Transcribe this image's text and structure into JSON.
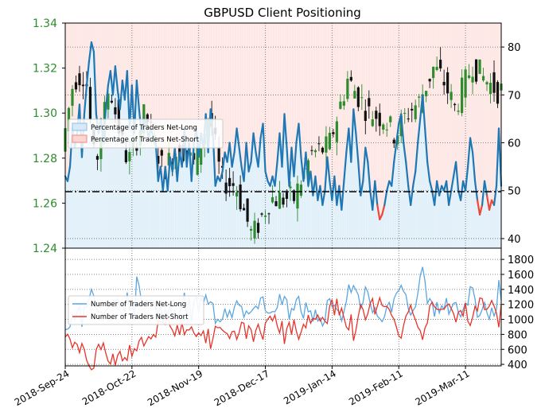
{
  "chart_data": [
    {
      "type": "candlestick+line",
      "title": "GBPUSD Client Positioning",
      "x_ticks": [
        "2018-Sep-24",
        "2018-Oct-22",
        "2018-Nov-19",
        "2018-Dec-17",
        "2019-Jan-14",
        "2019-Feb-11",
        "2019-Mar-11"
      ],
      "price_axis": {
        "side": "left",
        "ylim": [
          1.24,
          1.34
        ],
        "ticks": [
          "1.24",
          "1.26",
          "1.28",
          "1.30",
          "1.32",
          "1.34"
        ]
      },
      "percent_axis": {
        "side": "right",
        "ylim": [
          38,
          85
        ],
        "ticks": [
          "40",
          "50",
          "60",
          "70",
          "80"
        ]
      },
      "reference_line": {
        "axis": "percent",
        "value": 50,
        "style": "dash-dot"
      },
      "legend": {
        "placement": "middle-left",
        "entries": [
          "Percentage of Traders Net-Long",
          "Percentage of Traders Net-Short"
        ]
      },
      "colors": {
        "up_candle": "#2e8b2e",
        "down_candle": "#111111",
        "long_line": "#1f77b4",
        "long_fill": "#d6e9f8",
        "short_line": "#e8493c",
        "short_fill": "#fbd5d0"
      },
      "grid": true,
      "pct_long_series": [
        {
          "x": 0,
          "y": 53
        },
        {
          "x": 2,
          "y": 52
        },
        {
          "x": 4,
          "y": 55
        },
        {
          "x": 6,
          "y": 63
        },
        {
          "x": 8,
          "y": 59
        },
        {
          "x": 10,
          "y": 62
        },
        {
          "x": 12,
          "y": 68
        },
        {
          "x": 14,
          "y": 57
        },
        {
          "x": 16,
          "y": 66
        },
        {
          "x": 18,
          "y": 72
        },
        {
          "x": 20,
          "y": 77
        },
        {
          "x": 22,
          "y": 81
        },
        {
          "x": 24,
          "y": 79
        },
        {
          "x": 26,
          "y": 66
        },
        {
          "x": 28,
          "y": 62
        },
        {
          "x": 30,
          "y": 65
        },
        {
          "x": 32,
          "y": 60
        },
        {
          "x": 34,
          "y": 67
        },
        {
          "x": 36,
          "y": 72
        },
        {
          "x": 38,
          "y": 75
        },
        {
          "x": 40,
          "y": 70
        },
        {
          "x": 42,
          "y": 76
        },
        {
          "x": 44,
          "y": 71
        },
        {
          "x": 46,
          "y": 67
        },
        {
          "x": 48,
          "y": 73
        },
        {
          "x": 50,
          "y": 69
        },
        {
          "x": 52,
          "y": 75
        },
        {
          "x": 54,
          "y": 63
        },
        {
          "x": 56,
          "y": 72
        },
        {
          "x": 58,
          "y": 62
        },
        {
          "x": 60,
          "y": 73
        },
        {
          "x": 62,
          "y": 67
        },
        {
          "x": 64,
          "y": 62
        },
        {
          "x": 66,
          "y": 65
        },
        {
          "x": 68,
          "y": 64
        },
        {
          "x": 70,
          "y": 61
        },
        {
          "x": 72,
          "y": 63
        },
        {
          "x": 74,
          "y": 61
        },
        {
          "x": 76,
          "y": 60
        },
        {
          "x": 78,
          "y": 52
        },
        {
          "x": 80,
          "y": 55
        },
        {
          "x": 82,
          "y": 50
        },
        {
          "x": 84,
          "y": 55
        },
        {
          "x": 86,
          "y": 50
        },
        {
          "x": 88,
          "y": 57
        },
        {
          "x": 90,
          "y": 54
        },
        {
          "x": 92,
          "y": 59
        },
        {
          "x": 94,
          "y": 52
        },
        {
          "x": 96,
          "y": 58
        },
        {
          "x": 98,
          "y": 55
        },
        {
          "x": 100,
          "y": 63
        },
        {
          "x": 102,
          "y": 55
        },
        {
          "x": 104,
          "y": 60
        },
        {
          "x": 106,
          "y": 52
        },
        {
          "x": 108,
          "y": 60
        },
        {
          "x": 110,
          "y": 63
        },
        {
          "x": 112,
          "y": 57
        },
        {
          "x": 114,
          "y": 62
        },
        {
          "x": 116,
          "y": 59
        },
        {
          "x": 118,
          "y": 66
        },
        {
          "x": 120,
          "y": 58
        },
        {
          "x": 122,
          "y": 67
        },
        {
          "x": 124,
          "y": 62
        },
        {
          "x": 126,
          "y": 51
        },
        {
          "x": 128,
          "y": 53
        },
        {
          "x": 130,
          "y": 52
        },
        {
          "x": 132,
          "y": 54
        },
        {
          "x": 134,
          "y": 58
        },
        {
          "x": 136,
          "y": 56
        },
        {
          "x": 138,
          "y": 60
        },
        {
          "x": 140,
          "y": 55
        },
        {
          "x": 142,
          "y": 58
        },
        {
          "x": 144,
          "y": 63
        },
        {
          "x": 146,
          "y": 59
        },
        {
          "x": 148,
          "y": 55
        },
        {
          "x": 150,
          "y": 52
        },
        {
          "x": 152,
          "y": 60
        },
        {
          "x": 154,
          "y": 54
        },
        {
          "x": 156,
          "y": 56
        },
        {
          "x": 158,
          "y": 62
        },
        {
          "x": 160,
          "y": 58
        },
        {
          "x": 162,
          "y": 55
        },
        {
          "x": 164,
          "y": 61
        },
        {
          "x": 166,
          "y": 64
        },
        {
          "x": 168,
          "y": 54
        },
        {
          "x": 170,
          "y": 52
        },
        {
          "x": 172,
          "y": 51
        },
        {
          "x": 174,
          "y": 53
        },
        {
          "x": 176,
          "y": 51
        },
        {
          "x": 178,
          "y": 56
        },
        {
          "x": 180,
          "y": 62
        },
        {
          "x": 182,
          "y": 55
        },
        {
          "x": 184,
          "y": 66
        },
        {
          "x": 186,
          "y": 59
        },
        {
          "x": 188,
          "y": 51
        },
        {
          "x": 190,
          "y": 59
        },
        {
          "x": 192,
          "y": 53
        },
        {
          "x": 194,
          "y": 60
        },
        {
          "x": 196,
          "y": 64
        },
        {
          "x": 198,
          "y": 57
        },
        {
          "x": 200,
          "y": 52
        },
        {
          "x": 202,
          "y": 58
        },
        {
          "x": 204,
          "y": 51
        },
        {
          "x": 206,
          "y": 54
        },
        {
          "x": 208,
          "y": 49
        },
        {
          "x": 210,
          "y": 53
        },
        {
          "x": 212,
          "y": 48
        },
        {
          "x": 214,
          "y": 51
        },
        {
          "x": 216,
          "y": 47
        },
        {
          "x": 218,
          "y": 50
        },
        {
          "x": 220,
          "y": 57
        },
        {
          "x": 222,
          "y": 52
        },
        {
          "x": 224,
          "y": 48
        },
        {
          "x": 226,
          "y": 53
        },
        {
          "x": 228,
          "y": 47
        },
        {
          "x": 230,
          "y": 51
        },
        {
          "x": 232,
          "y": 46
        },
        {
          "x": 234,
          "y": 52
        },
        {
          "x": 236,
          "y": 58
        },
        {
          "x": 238,
          "y": 63
        },
        {
          "x": 240,
          "y": 56
        },
        {
          "x": 242,
          "y": 67
        },
        {
          "x": 244,
          "y": 62
        },
        {
          "x": 246,
          "y": 56
        },
        {
          "x": 248,
          "y": 49
        },
        {
          "x": 250,
          "y": 52
        },
        {
          "x": 252,
          "y": 59
        },
        {
          "x": 254,
          "y": 56
        },
        {
          "x": 256,
          "y": 50
        },
        {
          "x": 258,
          "y": 46
        },
        {
          "x": 260,
          "y": 52
        },
        {
          "x": 262,
          "y": 47
        },
        {
          "x": 264,
          "y": 44
        },
        {
          "x": 266,
          "y": 45
        },
        {
          "x": 268,
          "y": 47
        },
        {
          "x": 270,
          "y": 50
        },
        {
          "x": 272,
          "y": 52
        },
        {
          "x": 274,
          "y": 51
        },
        {
          "x": 276,
          "y": 56
        },
        {
          "x": 278,
          "y": 60
        },
        {
          "x": 280,
          "y": 64
        },
        {
          "x": 282,
          "y": 66
        },
        {
          "x": 284,
          "y": 60
        },
        {
          "x": 286,
          "y": 56
        },
        {
          "x": 288,
          "y": 51
        },
        {
          "x": 290,
          "y": 47
        },
        {
          "x": 292,
          "y": 51
        },
        {
          "x": 294,
          "y": 54
        },
        {
          "x": 296,
          "y": 60
        },
        {
          "x": 298,
          "y": 65
        },
        {
          "x": 300,
          "y": 70
        },
        {
          "x": 302,
          "y": 63
        },
        {
          "x": 304,
          "y": 56
        },
        {
          "x": 306,
          "y": 52
        },
        {
          "x": 308,
          "y": 50
        },
        {
          "x": 310,
          "y": 47
        },
        {
          "x": 312,
          "y": 52
        },
        {
          "x": 314,
          "y": 49
        },
        {
          "x": 316,
          "y": 51
        },
        {
          "x": 318,
          "y": 50
        },
        {
          "x": 320,
          "y": 52
        },
        {
          "x": 322,
          "y": 47
        },
        {
          "x": 324,
          "y": 50
        },
        {
          "x": 326,
          "y": 53
        },
        {
          "x": 328,
          "y": 56
        },
        {
          "x": 330,
          "y": 50
        },
        {
          "x": 332,
          "y": 48
        },
        {
          "x": 334,
          "y": 52
        },
        {
          "x": 336,
          "y": 50
        },
        {
          "x": 338,
          "y": 55
        },
        {
          "x": 340,
          "y": 61
        },
        {
          "x": 342,
          "y": 58
        },
        {
          "x": 344,
          "y": 52
        },
        {
          "x": 346,
          "y": 48
        },
        {
          "x": 348,
          "y": 45
        },
        {
          "x": 350,
          "y": 47
        },
        {
          "x": 352,
          "y": 52
        },
        {
          "x": 354,
          "y": 49
        },
        {
          "x": 356,
          "y": 46
        },
        {
          "x": 358,
          "y": 48
        },
        {
          "x": 360,
          "y": 47
        },
        {
          "x": 362,
          "y": 51
        },
        {
          "x": 364,
          "y": 63
        },
        {
          "x": 366,
          "y": 51
        }
      ],
      "pct_long_note": "x index spans the plotted period from 2018-Sep-24 to 2019-Mar-25; y is percent net-long"
    },
    {
      "type": "line",
      "legend": {
        "placement": "middle-left",
        "entries": [
          "Number of Traders Net-Long",
          "Number of Traders Net-Short"
        ]
      },
      "count_axis": {
        "side": "right",
        "ylim": [
          380,
          1950
        ],
        "ticks": [
          "400",
          "600",
          "800",
          "1000",
          "1200",
          "1400",
          "1600",
          "1800"
        ]
      },
      "x_ticks": [
        "2018-Sep-24",
        "2018-Oct-22",
        "2018-Nov-19",
        "2018-Dec-17",
        "2019-Jan-14",
        "2019-Feb-11",
        "2019-Mar-11"
      ],
      "grid": true
    }
  ],
  "texts": {
    "title": "GBPUSD Client Positioning",
    "legend_top_long": "Percentage of Traders Net-Long",
    "legend_top_short": "Percentage of Traders Net-Short",
    "legend_bottom_long": "Number of Traders Net-Long",
    "legend_bottom_short": "Number of Traders Net-Short"
  }
}
